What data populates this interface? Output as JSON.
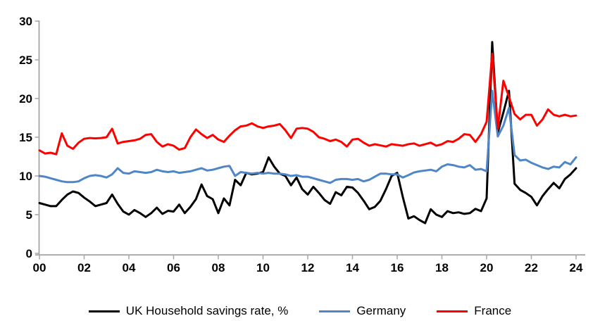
{
  "chart_data": {
    "type": "line",
    "title": "",
    "x_axis": {
      "tick_labels": [
        "00",
        "02",
        "04",
        "06",
        "08",
        "10",
        "12",
        "14",
        "16",
        "18",
        "20",
        "22",
        "24"
      ],
      "unit": "year, quarterly observations 2000Q1-2024Q1"
    },
    "y_axis": {
      "ticks": [
        0,
        5,
        10,
        15,
        20,
        25,
        30
      ],
      "ylim": [
        0,
        30
      ]
    },
    "grid": false,
    "legend_position": "bottom",
    "axis_color": "#A6A6A6",
    "series": [
      {
        "name": "UK Household savings rate, %",
        "color": "#000000",
        "values": [
          6.5,
          6.3,
          6.1,
          6.1,
          6.9,
          7.6,
          8.0,
          7.8,
          7.2,
          6.7,
          6.1,
          6.3,
          6.5,
          7.6,
          6.4,
          5.4,
          5.0,
          5.6,
          5.2,
          4.7,
          5.2,
          5.9,
          5.1,
          5.5,
          5.4,
          6.3,
          5.2,
          6.0,
          7.0,
          8.9,
          7.4,
          7.0,
          5.2,
          7.1,
          6.2,
          9.5,
          8.8,
          10.4,
          10.2,
          10.3,
          10.5,
          12.4,
          11.2,
          10.3,
          10.0,
          8.8,
          9.8,
          8.3,
          7.6,
          8.6,
          7.8,
          6.9,
          6.4,
          7.9,
          7.5,
          8.6,
          8.5,
          7.8,
          6.8,
          5.7,
          6.0,
          6.8,
          8.3,
          10.0,
          10.4,
          7.3,
          4.5,
          4.8,
          4.3,
          3.9,
          5.7,
          5.0,
          4.7,
          5.45,
          5.2,
          5.3,
          5.1,
          5.2,
          5.75,
          5.45,
          7.1,
          27.3,
          15.6,
          18.2,
          21.0,
          9.0,
          8.2,
          7.8,
          7.3,
          6.2,
          7.4,
          8.3,
          9.1,
          8.4,
          9.6,
          10.2,
          11.0
        ]
      },
      {
        "name": "Germany",
        "color": "#4F86C6",
        "values": [
          10.0,
          9.9,
          9.7,
          9.5,
          9.3,
          9.2,
          9.2,
          9.3,
          9.7,
          10.0,
          10.1,
          10.0,
          9.8,
          10.2,
          11.0,
          10.4,
          10.3,
          10.6,
          10.5,
          10.4,
          10.5,
          10.8,
          10.6,
          10.5,
          10.6,
          10.4,
          10.5,
          10.6,
          10.8,
          11.0,
          10.7,
          10.8,
          11.0,
          11.2,
          11.3,
          10.0,
          10.5,
          10.4,
          10.3,
          10.4,
          10.3,
          10.4,
          10.3,
          10.3,
          10.2,
          10.0,
          10.1,
          9.9,
          9.9,
          9.7,
          9.5,
          9.3,
          9.1,
          9.5,
          9.6,
          9.6,
          9.5,
          9.6,
          9.3,
          9.5,
          9.9,
          10.3,
          10.3,
          10.2,
          10.2,
          9.8,
          10.1,
          10.45,
          10.6,
          10.7,
          10.8,
          10.6,
          11.2,
          11.5,
          11.4,
          11.2,
          11.1,
          11.4,
          10.8,
          10.9,
          10.6,
          21.0,
          15.1,
          16.5,
          18.8,
          12.7,
          12.0,
          12.1,
          11.7,
          11.4,
          11.1,
          10.9,
          11.2,
          11.1,
          11.8,
          11.5,
          12.4
        ]
      },
      {
        "name": "France",
        "color": "#FF0000",
        "values": [
          13.3,
          12.9,
          13.0,
          12.8,
          15.5,
          13.9,
          13.5,
          14.3,
          14.8,
          14.9,
          14.85,
          14.9,
          15.0,
          16.1,
          14.2,
          14.4,
          14.5,
          14.6,
          14.8,
          15.3,
          15.4,
          14.4,
          13.8,
          14.1,
          13.9,
          13.4,
          13.6,
          15.0,
          16.0,
          15.4,
          14.9,
          15.3,
          14.7,
          14.4,
          15.2,
          15.9,
          16.4,
          16.5,
          16.8,
          16.4,
          16.2,
          16.4,
          16.5,
          16.7,
          15.9,
          14.9,
          16.1,
          16.2,
          16.1,
          15.7,
          15.0,
          14.8,
          14.5,
          14.7,
          14.4,
          13.8,
          14.7,
          14.8,
          14.3,
          13.9,
          14.1,
          13.95,
          13.8,
          14.1,
          14.0,
          13.9,
          14.1,
          14.2,
          13.9,
          14.1,
          14.3,
          13.9,
          14.1,
          14.5,
          14.4,
          14.8,
          15.4,
          15.3,
          14.4,
          15.4,
          17.0,
          25.8,
          16.1,
          22.3,
          20.2,
          18.0,
          17.3,
          17.9,
          17.9,
          16.5,
          17.3,
          18.6,
          17.9,
          17.7,
          17.9,
          17.7,
          17.8
        ]
      }
    ]
  }
}
